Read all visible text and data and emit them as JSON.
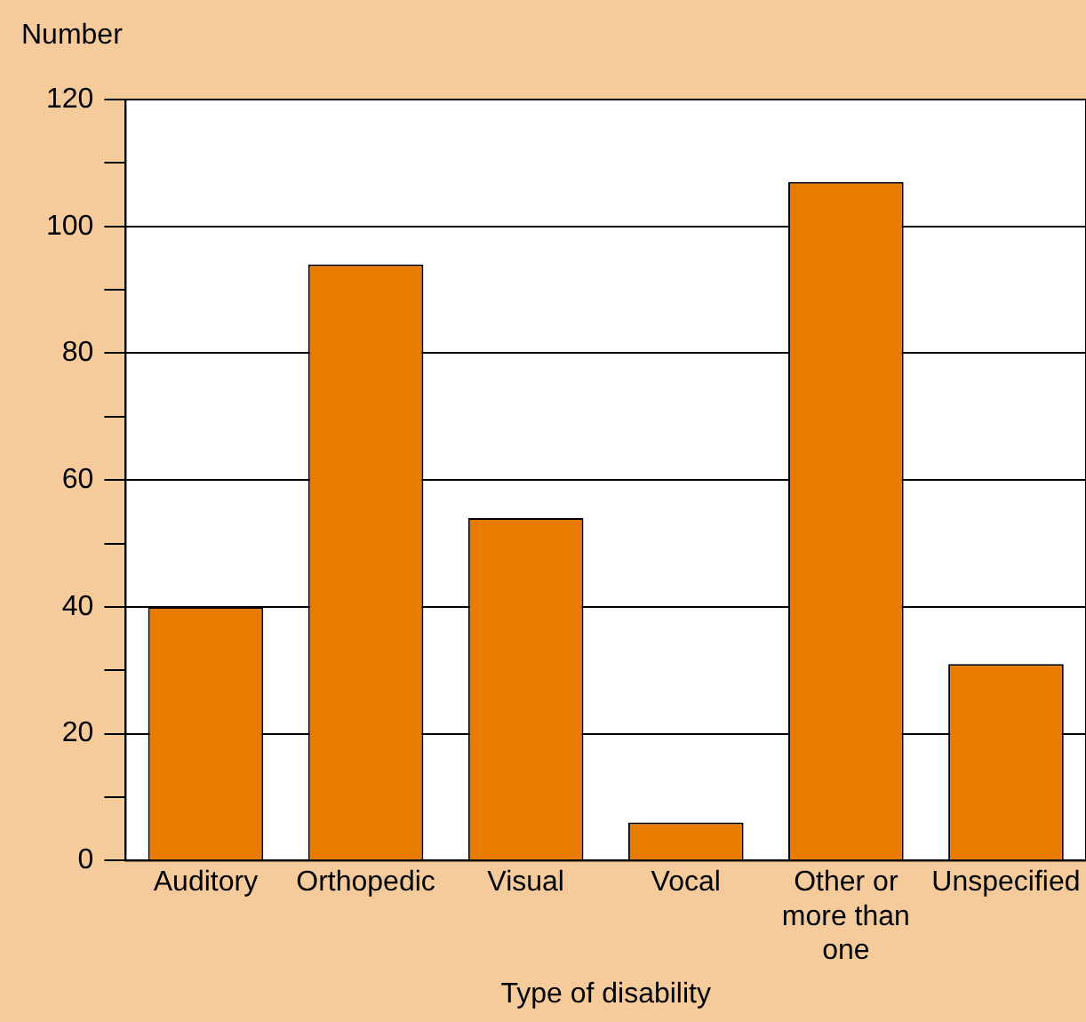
{
  "chart_data": {
    "type": "bar",
    "xlabel": "Type of disability",
    "ylabel": "Number",
    "categories": [
      "Auditory",
      "Orthopedic",
      "Visual",
      "Vocal",
      "Other or more than one",
      "Unspecified"
    ],
    "values": [
      40,
      94,
      54,
      6,
      107,
      31
    ],
    "color": "#e87b00",
    "ylim": [
      0,
      120
    ],
    "yticks": [
      0,
      {
        "value": 10,
        "label": null
      },
      20,
      {
        "value": 30,
        "label": null
      },
      40,
      {
        "value": 50,
        "label": null
      },
      60,
      {
        "value": 70,
        "label": null
      },
      80,
      {
        "value": 90,
        "label": null
      },
      100,
      {
        "value": 110,
        "label": null
      },
      120
    ],
    "grid": "y"
  }
}
